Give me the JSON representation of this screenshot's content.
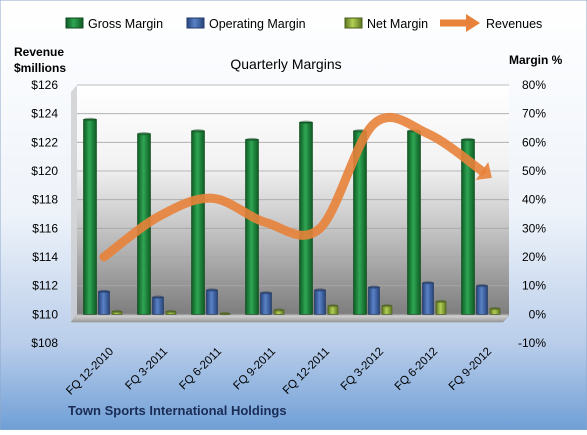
{
  "chart_data": {
    "type": "bar",
    "title": "Quarterly Margins",
    "left_axis_title_line1": "Revenue",
    "left_axis_title_line2": "$millions",
    "right_axis_title": "Margin %",
    "footer": "Town Sports International Holdings",
    "categories": [
      "FQ 12-2010",
      "FQ 3-2011",
      "FQ 6-2011",
      "FQ 9-2011",
      "FQ 12-2011",
      "FQ 3-2012",
      "FQ 6-2012",
      "FQ 9-2012"
    ],
    "series": [
      {
        "name": "Gross Margin",
        "axis": "right",
        "kind": "bar",
        "color": "#1f8a3c",
        "values": [
          68,
          63,
          64,
          61,
          67,
          64,
          64,
          61
        ]
      },
      {
        "name": "Operating Margin",
        "axis": "right",
        "kind": "bar",
        "color": "#3d62a8",
        "values": [
          8,
          6,
          8.5,
          7.5,
          8.5,
          9.5,
          11,
          10
        ]
      },
      {
        "name": "Net Margin",
        "axis": "right",
        "kind": "bar",
        "color": "#8aa832",
        "values": [
          1,
          1,
          0.3,
          1.5,
          3,
          3,
          4.5,
          2
        ]
      },
      {
        "name": "Revenues",
        "axis": "left",
        "kind": "line",
        "color": "#e8823a",
        "values": [
          114,
          116.8,
          118.1,
          116.4,
          116,
          123.3,
          122.6,
          120
        ]
      }
    ],
    "left_axis": {
      "min": 108,
      "max": 126,
      "step": 2,
      "ticks": [
        "$108",
        "$110",
        "$112",
        "$114",
        "$116",
        "$118",
        "$120",
        "$122",
        "$124",
        "$126"
      ]
    },
    "right_axis": {
      "min": -10,
      "max": 80,
      "step": 10,
      "ticks": [
        "-10%",
        "0%",
        "10%",
        "20%",
        "30%",
        "40%",
        "50%",
        "60%",
        "70%",
        "80%"
      ]
    },
    "grid": true,
    "legend_position": "top"
  }
}
